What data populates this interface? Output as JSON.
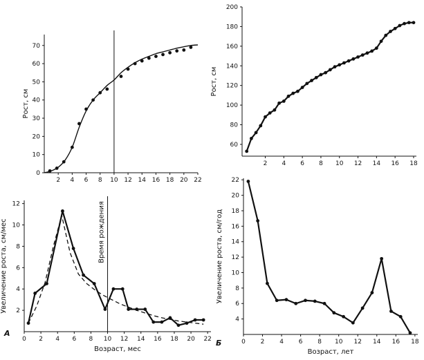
{
  "chart_data": [
    {
      "id": "tl",
      "type": "scatter",
      "ylabel": "Рост, см",
      "xlabel": "",
      "panel_letter": "",
      "xlim": [
        0,
        22
      ],
      "ylim": [
        0,
        76
      ],
      "xticks": [
        2,
        4,
        6,
        8,
        10,
        12,
        14,
        16,
        18,
        20,
        22
      ],
      "yticks": [
        0,
        10,
        20,
        30,
        40,
        50,
        60,
        70
      ],
      "vline": 10,
      "series": [
        {
          "style": "solid-thin",
          "marker": false,
          "x": [
            0,
            1,
            2,
            3,
            4,
            5,
            6,
            7,
            8,
            9,
            10,
            11,
            12,
            13,
            14,
            15,
            16,
            17,
            18,
            19,
            20,
            21,
            22
          ],
          "y": [
            0,
            1,
            3,
            7,
            14,
            25,
            34,
            40,
            44,
            48,
            51,
            55,
            58,
            60.5,
            62.5,
            64,
            65.5,
            66.5,
            67.5,
            68.5,
            69.3,
            70,
            70.3
          ]
        },
        {
          "style": "none",
          "marker": true,
          "x": [
            0.8,
            1.8,
            2.8,
            4.0,
            5.0,
            6.0,
            7.0,
            8.0,
            9.0,
            11.0,
            12.0,
            13.0,
            14.0,
            15.0,
            16.0,
            17.0,
            18.0,
            19.0,
            20.0,
            21.0
          ],
          "y": [
            1,
            2.5,
            6,
            14,
            27,
            35,
            40,
            44,
            46,
            53,
            57,
            60,
            61.5,
            63,
            64,
            65,
            66,
            67,
            67.5,
            69
          ]
        }
      ]
    },
    {
      "id": "tr",
      "type": "line",
      "ylabel": "Рост, см",
      "xlabel": "",
      "panel_letter": "",
      "xlim": [
        -0.5,
        18.3
      ],
      "ylim": [
        48,
        200
      ],
      "xticks": [
        2,
        4,
        6,
        8,
        10,
        12,
        14,
        16,
        18
      ],
      "yticks": [
        60,
        80,
        100,
        120,
        140,
        160,
        180,
        200
      ],
      "series": [
        {
          "style": "solid-thick",
          "marker": true,
          "x": [
            0,
            0.5,
            1,
            1.5,
            2,
            2.5,
            3,
            3.5,
            4,
            4.5,
            5,
            5.5,
            6,
            6.5,
            7,
            7.5,
            8,
            8.5,
            9,
            9.5,
            10,
            10.5,
            11,
            11.5,
            12,
            12.5,
            13,
            13.5,
            14,
            14.5,
            15,
            15.5,
            16,
            16.5,
            17,
            17.5,
            18
          ],
          "y": [
            53,
            66,
            72,
            79,
            88,
            92,
            95,
            102,
            104,
            109,
            112,
            114,
            118,
            122,
            125,
            128,
            131,
            133,
            136,
            139,
            141,
            143,
            145,
            147,
            149,
            151,
            153,
            155,
            158,
            165,
            171,
            175,
            178,
            181,
            183,
            184,
            184
          ]
        }
      ]
    },
    {
      "id": "bl",
      "type": "line",
      "ylabel": "Увеличение роста, см/мес",
      "xlabel": "Возраст, мес",
      "panel_letter": "А",
      "annotation": "Время рождения",
      "xlim": [
        0,
        22.4
      ],
      "ylim": [
        0,
        12.3
      ],
      "xticks": [
        0,
        2,
        4,
        6,
        8,
        10,
        12,
        14,
        16,
        18,
        20,
        22
      ],
      "yticks": [
        2,
        4,
        6,
        8,
        10,
        12
      ],
      "vline": 10,
      "series": [
        {
          "style": "solid-thick",
          "marker": true,
          "x": [
            0.5,
            1.3,
            2.7,
            4.6,
            5.9,
            7.1,
            8.4,
            9.7,
            10.7,
            11.8,
            12.5,
            13.5,
            14.5,
            15.5,
            16.5,
            17.5,
            18.5,
            19.5,
            20.5,
            21.5
          ],
          "y": [
            0.8,
            3.6,
            4.5,
            11.3,
            7.8,
            5.3,
            4.5,
            2.1,
            4.0,
            4.0,
            2.1,
            2.1,
            2.1,
            0.9,
            0.9,
            1.3,
            0.6,
            0.8,
            1.1,
            1.1
          ]
        },
        {
          "style": "dashed",
          "marker": false,
          "x": [
            0.5,
            1.5,
            2.5,
            3.5,
            4.5,
            5.5,
            6.5,
            7.5,
            8.5,
            9.5,
            10.5,
            11.5,
            12.5,
            13.5,
            14.5,
            15.5,
            16.5,
            17.5,
            18.5,
            19.5,
            20.5,
            21.5
          ],
          "y": [
            0.8,
            2.4,
            4.6,
            8.0,
            10.9,
            7.4,
            5.4,
            4.5,
            3.9,
            3.4,
            3.0,
            2.6,
            2.3,
            2.0,
            1.75,
            1.5,
            1.3,
            1.15,
            1.0,
            0.9,
            0.8,
            0.7
          ]
        }
      ]
    },
    {
      "id": "br",
      "type": "line",
      "ylabel": "Увеличение роста, см/год",
      "xlabel": "Возраст, лет",
      "panel_letter": "Б",
      "xlim": [
        0,
        18.3
      ],
      "ylim": [
        2,
        22.2
      ],
      "xticks": [
        0,
        2,
        4,
        6,
        8,
        10,
        12,
        14,
        16,
        18
      ],
      "yticks": [
        4,
        6,
        8,
        10,
        12,
        14,
        16,
        18,
        20,
        22
      ],
      "series": [
        {
          "style": "solid-thick",
          "marker": true,
          "x": [
            0.5,
            1.5,
            2.5,
            3.5,
            4.5,
            5.5,
            6.5,
            7.5,
            8.5,
            9.5,
            10.5,
            11.5,
            12.5,
            13.5,
            14.5,
            15.5,
            16.5,
            17.5
          ],
          "y": [
            21.8,
            16.7,
            8.6,
            6.4,
            6.5,
            6.0,
            6.4,
            6.3,
            6.0,
            4.8,
            4.3,
            3.5,
            5.4,
            7.4,
            11.8,
            5.0,
            4.3,
            2.2
          ]
        }
      ]
    }
  ]
}
